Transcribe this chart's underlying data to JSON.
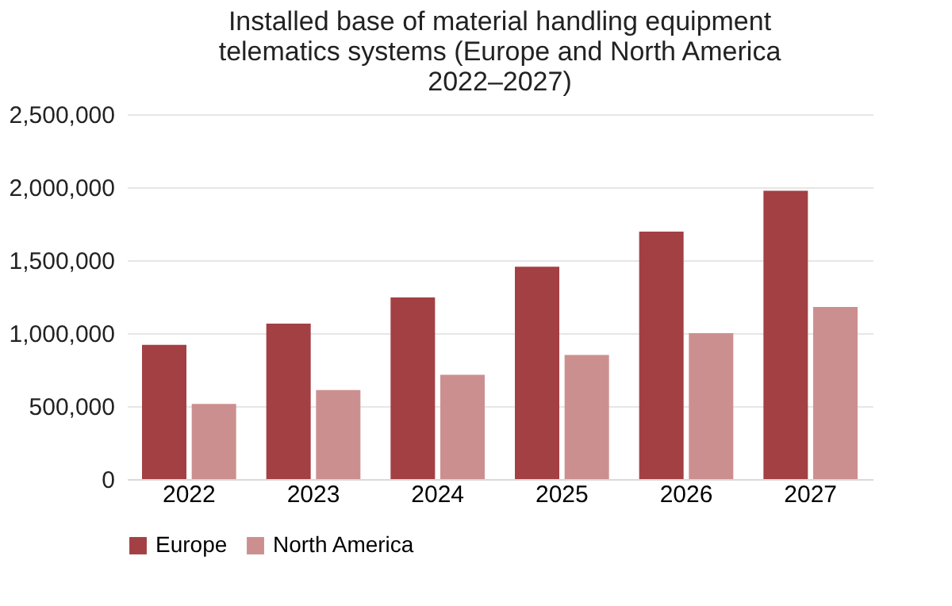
{
  "chart_data": {
    "type": "bar",
    "title": "Installed base of material handling equipment telematics systems (Europe and North America 2022–2027)",
    "categories": [
      "2022",
      "2023",
      "2024",
      "2025",
      "2026",
      "2027"
    ],
    "series": [
      {
        "name": "Europe",
        "color": "#a34043",
        "values": [
          920000,
          1065000,
          1245000,
          1455000,
          1695000,
          1975000
        ]
      },
      {
        "name": "North America",
        "color": "#cc8f8f",
        "values": [
          515000,
          610000,
          715000,
          850000,
          1000000,
          1180000
        ]
      }
    ],
    "ylim": [
      0,
      2500000
    ],
    "yticks": [
      {
        "value": 0,
        "label": "0"
      },
      {
        "value": 500000,
        "label": "500,000"
      },
      {
        "value": 1000000,
        "label": "1,000,000"
      },
      {
        "value": 1500000,
        "label": "1,500,000"
      },
      {
        "value": 2000000,
        "label": "2,000,000"
      },
      {
        "value": 2500000,
        "label": "2,500,000"
      }
    ],
    "grid": "y",
    "legend": "bottom"
  }
}
